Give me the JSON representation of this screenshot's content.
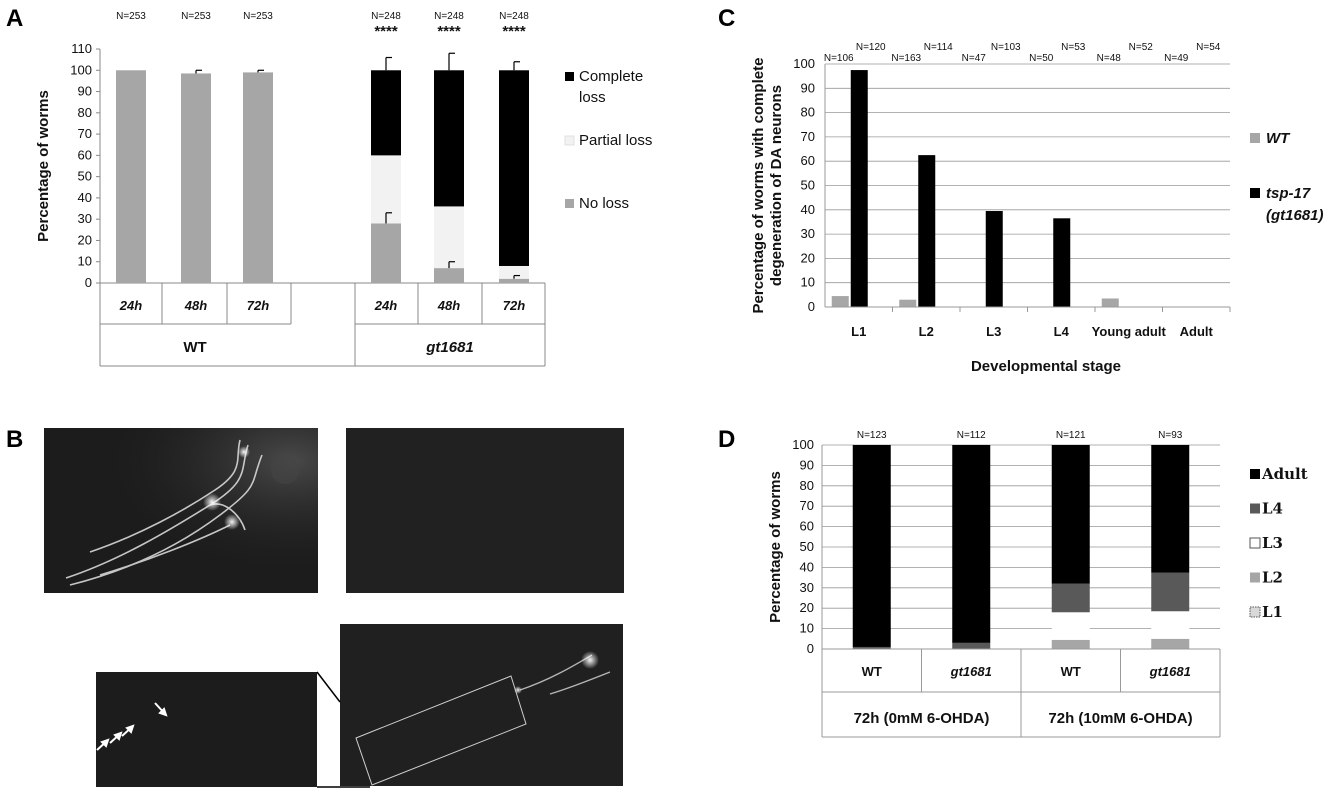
{
  "panels": {
    "A": "A",
    "B": "B",
    "C": "C",
    "D": "D"
  },
  "chart_data": [
    {
      "panel": "A",
      "type": "bar",
      "ylabel": "Percentage of worms",
      "ylim": [
        0,
        110
      ],
      "yticks": [
        0,
        10,
        20,
        30,
        40,
        50,
        60,
        70,
        80,
        90,
        100,
        110
      ],
      "groups": [
        {
          "label": "WT",
          "categories": [
            "24h",
            "48h",
            "72h"
          ]
        },
        {
          "label": "gt1681",
          "categories": [
            "24h",
            "48h",
            "72h"
          ]
        }
      ],
      "n_labels": [
        "N=253",
        "N=253",
        "N=253",
        "N=248",
        "N=248",
        "N=248"
      ],
      "significance": [
        "",
        "",
        "",
        "****",
        "****",
        "****"
      ],
      "legend": [
        "Complete loss",
        "Partial loss",
        "No loss"
      ],
      "series": [
        {
          "name": "No loss",
          "color": "#a6a6a6",
          "values": [
            100,
            98.5,
            99,
            28,
            7,
            2
          ],
          "error": [
            0,
            1.5,
            1,
            5,
            3,
            1.5
          ]
        },
        {
          "name": "Partial loss",
          "color": "#f2f2f2",
          "values": [
            0,
            0,
            0,
            32,
            29,
            6
          ]
        },
        {
          "name": "Complete loss",
          "color": "#000000",
          "values": [
            0,
            0,
            0,
            40,
            64,
            92
          ],
          "error": [
            0,
            0,
            0,
            6,
            8,
            4
          ]
        }
      ]
    },
    {
      "panel": "C",
      "type": "bar",
      "ylabel": "Percentage of worms with complete degeneration of DA neurons",
      "ylabel_lines": [
        "Percentage of worms with complete",
        "degeneration of DA neurons"
      ],
      "xlabel": "Developmental stage",
      "ylim": [
        0,
        100
      ],
      "yticks": [
        0,
        10,
        20,
        30,
        40,
        50,
        60,
        70,
        80,
        90,
        100
      ],
      "categories": [
        "L1",
        "L2",
        "L3",
        "L4",
        "Young adult",
        "Adult"
      ],
      "series": [
        {
          "name": "WT",
          "color": "#a6a6a6",
          "values": [
            4.5,
            3,
            0,
            0,
            3.5,
            0
          ],
          "n": [
            "N=106",
            "N=163",
            "N=47",
            "N=50",
            "N=48",
            "N=49"
          ]
        },
        {
          "name": "tsp-17 (gt1681)",
          "color": "#000000",
          "values": [
            97.5,
            62.5,
            39.5,
            36.5,
            0,
            0
          ],
          "n": [
            "N=120",
            "N=114",
            "N=103",
            "N=53",
            "N=52",
            "N=54"
          ]
        }
      ],
      "legend": [
        "WT",
        "tsp-17",
        "(gt1681)"
      ]
    },
    {
      "panel": "D",
      "type": "bar",
      "ylabel": "Percentage of worms",
      "ylim": [
        0,
        100
      ],
      "yticks": [
        0,
        10,
        20,
        30,
        40,
        50,
        60,
        70,
        80,
        90,
        100
      ],
      "categories": [
        "WT",
        "gt1681",
        "WT",
        "gt1681"
      ],
      "groups": [
        "72h (0mM 6-OHDA)",
        "72h (10mM 6-OHDA)"
      ],
      "n_labels": [
        "N=123",
        "N=112",
        "N=121",
        "N=93"
      ],
      "legend": [
        "Adult",
        "L4",
        "L3",
        "L2",
        "L1"
      ],
      "series": [
        {
          "name": "L1",
          "color": "#d9d9d9",
          "values": [
            0,
            0,
            0,
            0
          ]
        },
        {
          "name": "L2",
          "color": "#a6a6a6",
          "values": [
            0,
            0,
            4.5,
            5
          ]
        },
        {
          "name": "L3",
          "color": "#ffffff",
          "values": [
            0,
            0,
            13.5,
            13.5
          ]
        },
        {
          "name": "L4",
          "color": "#595959",
          "values": [
            1,
            3,
            14,
            19
          ]
        },
        {
          "name": "Adult",
          "color": "#000000",
          "values": [
            99,
            97,
            68,
            62.5
          ]
        }
      ]
    }
  ]
}
